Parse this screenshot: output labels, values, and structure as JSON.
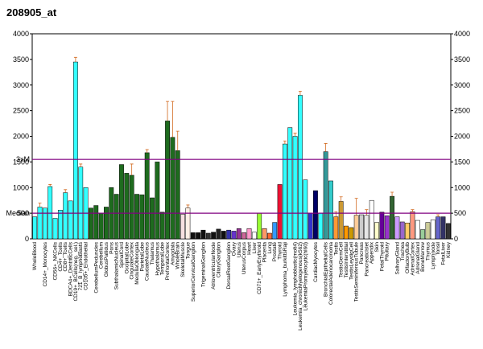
{
  "chart_data": {
    "type": "bar",
    "title": "208905_at",
    "categories": [
      "WholeBlood",
      null,
      "CD14+_Monocytes",
      null,
      "CD56+_NKCells",
      "CD4+_Tcells",
      "CD8+_Tcells",
      "BDCA4+_DentriticCells",
      "CD19+_BCells(neg._sel.)",
      "721_B_lymphoblasts",
      "CD105+_Endothelial",
      null,
      "CerebellumPeduncles",
      "Cerebellum",
      "GlobusPallidus",
      "Pons",
      "SubthalamicNucleus",
      "SpinalCord",
      "OccipitalLobe",
      "CingulateCortex",
      "MedullaOblongata",
      "ParietalLobe",
      "CaudateNucleus",
      "Thalamus",
      "Hypothalamus",
      "TemporalLobe",
      "PrefrontalCortex",
      "Amygdala",
      "WholeBrain",
      "SkeletalMuscle",
      "Tongue",
      "SuperiorCervicalGanglion",
      null,
      "TrigeminalGanglion",
      null,
      "AtrioventricularNode",
      "CiliaryGanglion",
      null,
      "DorsalRootGanglion",
      "Ovary",
      "Uterus",
      "UterusCorpus",
      "Heart",
      "Liver",
      "CD71+_EarlyErythroid",
      "Placenta",
      "Lung",
      "Prostate",
      "Thyroid",
      "Lymphoma_burkittsRaji",
      null,
      "Leukemia_lymphoblastic(molt4)",
      "Leukemia_chronicMyelogenous(k562)",
      "LeukemiaPromyelocytic(hl60)",
      null,
      "CardiacMyocytes",
      null,
      "BronchialEpithelialCells",
      "ColorectalAdenocarcinoma",
      "Testis",
      "TestisGermCell",
      "TestisInterstitial",
      "TestisLeydigCell",
      "TestisSeminiferousTubule",
      "Pancreas",
      "PancreaticIslet",
      "Appendix",
      "Skin",
      "FetalThyroid",
      "Pituitary",
      null,
      "SalivaryGland",
      "Trachea",
      "OlfactoryBulb",
      "AdrenalCortex",
      "AdrenalGland",
      "BoneMarrow",
      "Thymus",
      "Lymphnode",
      "Tonsil",
      "FetalLiver",
      "Kidney"
    ],
    "values": [
      430,
      620,
      600,
      1020,
      400,
      560,
      900,
      740,
      3450,
      1400,
      1000,
      600,
      650,
      500,
      620,
      1000,
      870,
      1450,
      1280,
      1240,
      870,
      860,
      1680,
      800,
      1500,
      520,
      2300,
      1980,
      1720,
      480,
      600,
      120,
      120,
      170,
      110,
      130,
      190,
      150,
      170,
      150,
      200,
      120,
      200,
      130,
      500,
      200,
      110,
      320,
      1060,
      1850,
      2170,
      2000,
      2800,
      1150,
      500,
      940,
      500,
      1700,
      1130,
      430,
      730,
      250,
      220,
      460,
      470,
      460,
      750,
      320,
      520,
      450,
      830,
      430,
      330,
      310,
      530,
      360,
      180,
      320,
      370,
      430,
      430,
      300
    ],
    "colors": [
      "#33ffff",
      "#33ffff",
      "#33ffff",
      "#33ffff",
      "#33ffff",
      "#33ffff",
      "#33ffff",
      "#33ffff",
      "#33ffff",
      "#33ffff",
      "#33ffff",
      "#1e6b1e",
      "#1e6b1e",
      "#1e6b1e",
      "#1e6b1e",
      "#1e6b1e",
      "#1e6b1e",
      "#1e6b1e",
      "#1e6b1e",
      "#1e6b1e",
      "#1e6b1e",
      "#1e6b1e",
      "#1e6b1e",
      "#1e6b1e",
      "#1e6b1e",
      "#1e6b1e",
      "#1e6b1e",
      "#1e6b1e",
      "#1e6b1e",
      "#f6e0e0",
      "#fff0e6",
      "#111111",
      "#111111",
      "#111111",
      "#333333",
      "#111111",
      "#222222",
      "#111111",
      "#3333aa",
      "#6633cc",
      "#993399",
      "#cc6699",
      "#ff99cc",
      "#ffffff",
      "#99ff33",
      "#ff9966",
      "#ff6633",
      "#3399ff",
      "#ee1133",
      "#33ffff",
      "#33ffff",
      "#33ffff",
      "#33ffff",
      "#33ffff",
      "#3333cc",
      "#000066",
      "#33ffff",
      "#339999",
      "#33cccc",
      "#ff9933",
      "#cc9933",
      "#ff9900",
      "#cc9900",
      "#ffcc99",
      "#cccccc",
      "#e6e6e6",
      "#ffffff",
      "#ffffcc",
      "#660099",
      "#9933cc",
      "#336633",
      "#cc99ff",
      "#9966cc",
      "#ffcc66",
      "#ff9980",
      "#ffffff",
      "#99cc99",
      "#cccc99",
      "#ffffff",
      "#6666cc",
      "#333366",
      "#333333"
    ],
    "errors": [
      null,
      80,
      null,
      40,
      null,
      null,
      60,
      null,
      90,
      60,
      null,
      null,
      null,
      null,
      null,
      null,
      null,
      null,
      null,
      220,
      null,
      null,
      60,
      null,
      null,
      null,
      380,
      700,
      380,
      null,
      60,
      null,
      null,
      null,
      null,
      null,
      null,
      null,
      null,
      null,
      null,
      null,
      null,
      null,
      null,
      null,
      null,
      null,
      null,
      60,
      null,
      60,
      80,
      null,
      null,
      null,
      null,
      160,
      null,
      100,
      90,
      null,
      null,
      330,
      null,
      110,
      null,
      null,
      null,
      null,
      80,
      null,
      null,
      null,
      40,
      null,
      null,
      null,
      null,
      40,
      null,
      null
    ],
    "ylim": [
      0,
      4000
    ],
    "yticks": [
      0,
      500,
      1000,
      1500,
      2000,
      2500,
      3000,
      3500,
      4000
    ],
    "reference_lines": [
      {
        "label": "3xM",
        "value": 1550
      },
      {
        "label": "Median",
        "value": 500
      }
    ],
    "reference_color": "#800080"
  }
}
